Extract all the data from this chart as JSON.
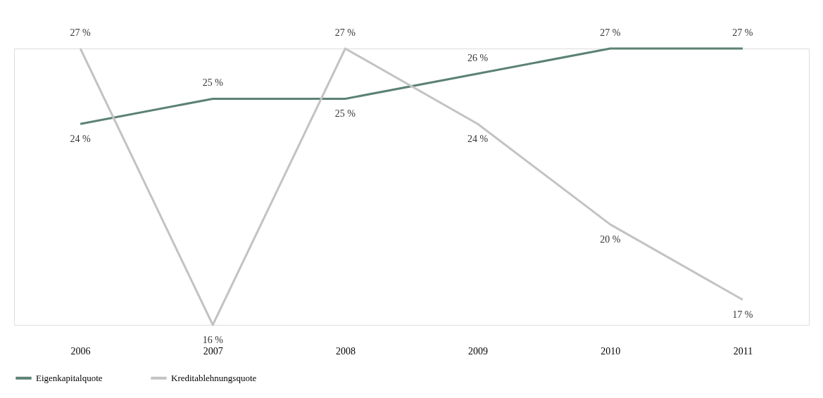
{
  "chart_data": {
    "type": "line",
    "categories": [
      "2006",
      "2007",
      "2008",
      "2009",
      "2010",
      "2011"
    ],
    "series": [
      {
        "name": "Eigenkapitalquote",
        "color": "#5b8272",
        "values": [
          24,
          25,
          25,
          26,
          27,
          27
        ],
        "value_labels": [
          "24 %",
          "25 %",
          "25 %",
          "26 %",
          "27 %",
          "27 %"
        ]
      },
      {
        "name": "Kreditablehnungsquote",
        "color": "#c3c3c3",
        "values": [
          27,
          16,
          27,
          24,
          20,
          17
        ],
        "value_labels": [
          "27 %",
          "16 %",
          "27 %",
          "24 %",
          "20 %",
          "17 %"
        ]
      }
    ],
    "legend": "bottom",
    "tick_labels": "x"
  }
}
